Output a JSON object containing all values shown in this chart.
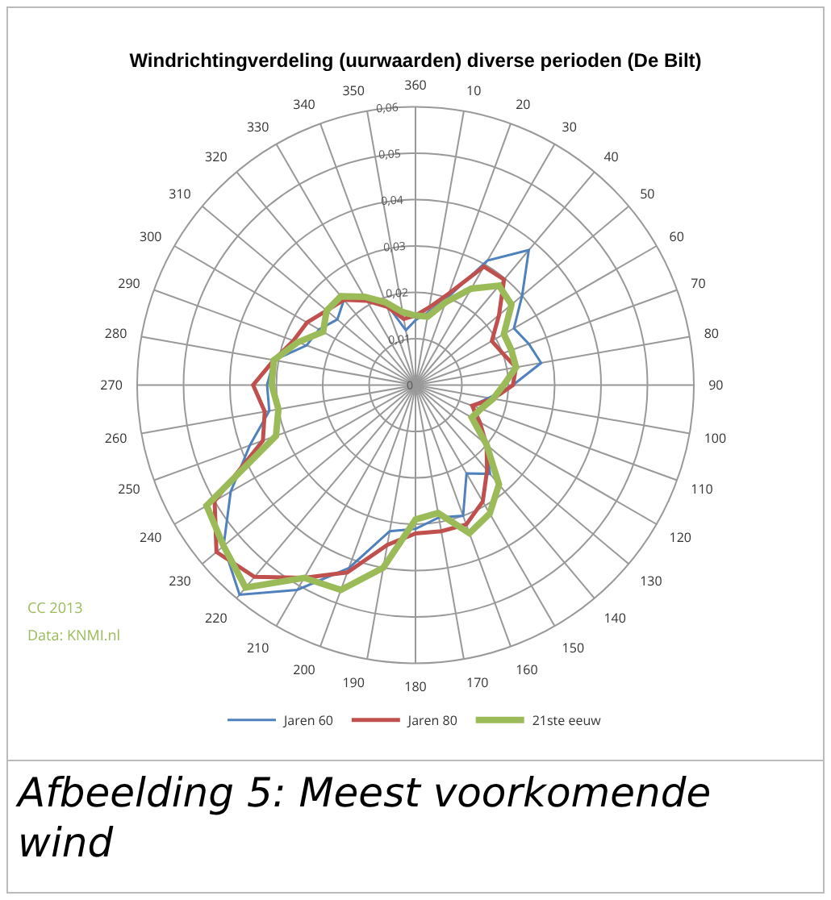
{
  "chart_data": {
    "type": "radar",
    "title": "Windrichtingverdeling (uurwaarden) diverse perioden (De Bilt)",
    "categories": [
      "360",
      "10",
      "20",
      "30",
      "40",
      "50",
      "60",
      "70",
      "80",
      "90",
      "100",
      "110",
      "120",
      "130",
      "140",
      "150",
      "160",
      "170",
      "180",
      "190",
      "200",
      "210",
      "220",
      "230",
      "240",
      "250",
      "260",
      "270",
      "280",
      "290",
      "300",
      "310",
      "320",
      "330",
      "340",
      "350"
    ],
    "series": [
      {
        "name": "Jaren 60",
        "color": "#4f81bd",
        "values": [
          0.014,
          0.016,
          0.02,
          0.031,
          0.038,
          0.03,
          0.0245,
          0.026,
          0.0275,
          0.021,
          0.016,
          0.013,
          0.015,
          0.02,
          0.025,
          0.022,
          0.03,
          0.029,
          0.031,
          0.032,
          0.042,
          0.051,
          0.059,
          0.054,
          0.046,
          0.038,
          0.032,
          0.032,
          0.031,
          0.025,
          0.024,
          0.022,
          0.024,
          0.021,
          0.019,
          0.012
        ]
      },
      {
        "name": "Jaren 80",
        "color": "#c0504d",
        "values": [
          0.015,
          0.017,
          0.021,
          0.0295,
          0.0297,
          0.0235,
          0.019,
          0.02,
          0.022,
          0.021,
          0.017,
          0.013,
          0.016,
          0.02,
          0.024,
          0.029,
          0.032,
          0.032,
          0.032,
          0.035,
          0.043,
          0.048,
          0.054,
          0.056,
          0.05,
          0.035,
          0.033,
          0.035,
          0.031,
          0.028,
          0.027,
          0.025,
          0.024,
          0.021,
          0.018,
          0.0145
        ]
      },
      {
        "name": "21ste eeuw",
        "color": "#9bbb59",
        "values": [
          0.015,
          0.015,
          0.019,
          0.024,
          0.028,
          0.027,
          0.022,
          0.022,
          0.022,
          0.019,
          0.017,
          0.015,
          0.014,
          0.02,
          0.028,
          0.032,
          0.034,
          0.028,
          0.029,
          0.04,
          0.047,
          0.048,
          0.057,
          0.054,
          0.052,
          0.032,
          0.03,
          0.031,
          0.031,
          0.027,
          0.023,
          0.025,
          0.025,
          0.022,
          0.019,
          0.016
        ]
      }
    ],
    "ylim": [
      0,
      0.06
    ],
    "yticks": [
      0,
      {
        "value": 0.01,
        "label": "0,01"
      },
      {
        "value": 0.02,
        "label": "0,02"
      },
      {
        "value": 0.03,
        "label": "0,03"
      },
      {
        "value": 0.04,
        "label": "0,04"
      },
      {
        "value": 0.05,
        "label": "0,05"
      },
      {
        "value": 0.06,
        "label": "0,06"
      }
    ],
    "grid": true,
    "legend": "bottom",
    "marker": "none",
    "annotations": [
      "CC 2013",
      "Data: KNMI.nl",
      "Afbeelding 5: Meest voorkomende wind"
    ]
  }
}
